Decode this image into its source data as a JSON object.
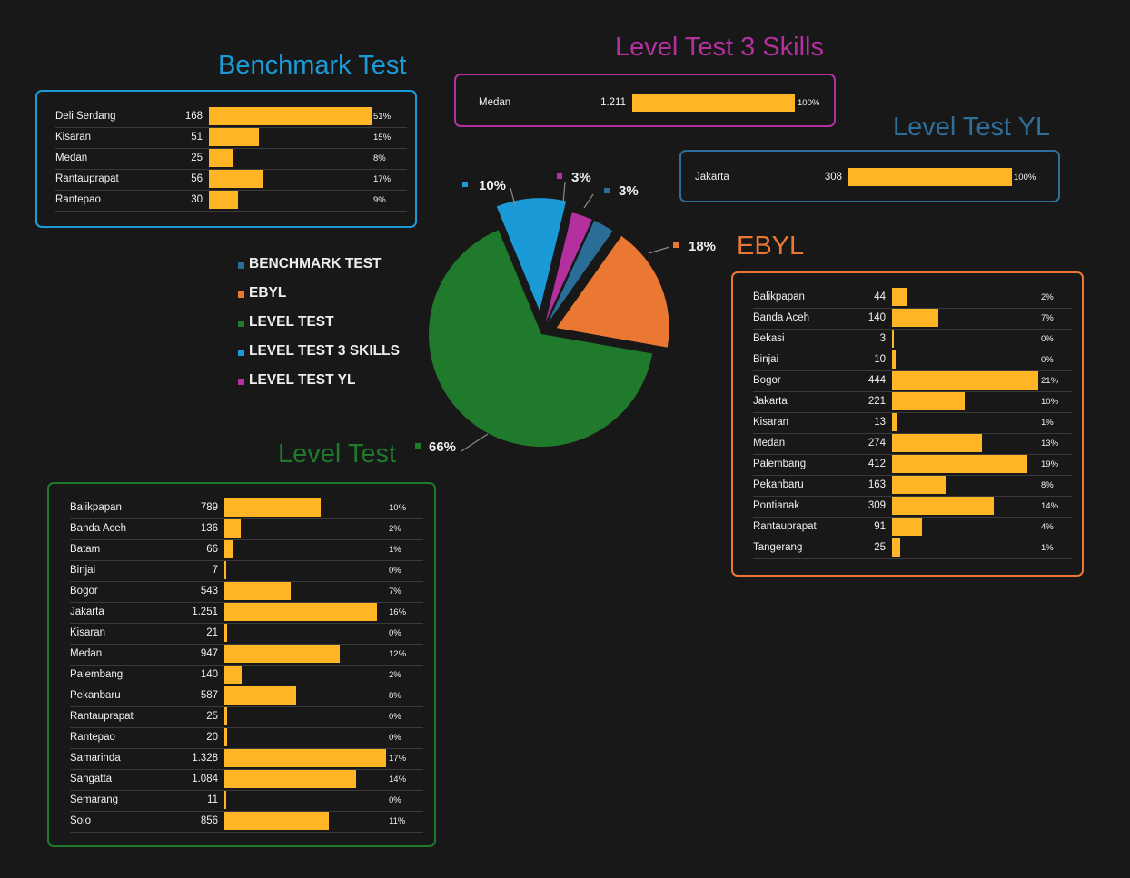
{
  "colors": {
    "benchmark": "#1a9bd8",
    "ebyl": "#ea7832",
    "level_test": "#1e7a2a",
    "level3": "#b3309e",
    "yl": "#2d6f9a",
    "bar": "#ffb526"
  },
  "titles": {
    "benchmark": "Benchmark Test",
    "level3": "Level Test 3 Skills",
    "yl": "Level Test YL",
    "ebyl": "EBYL",
    "level_test": "Level Test"
  },
  "legend": [
    {
      "label": "BENCHMARK TEST",
      "color": "#2a6e98"
    },
    {
      "label": "EBYL",
      "color": "#ea7832"
    },
    {
      "label": "LEVEL TEST",
      "color": "#1f7a2c"
    },
    {
      "label": "LEVEL TEST 3 SKILLS",
      "color": "#1a9bd8"
    },
    {
      "label": "LEVEL TEST YL",
      "color": "#b3309e"
    }
  ],
  "chart_data": [
    {
      "type": "pie",
      "slices": [
        {
          "legend": "LEVEL TEST 3 SKILLS",
          "label": "10%",
          "value": 10,
          "color": "#1a9bd8"
        },
        {
          "legend": "LEVEL TEST YL",
          "label": "3%",
          "value": 3,
          "color": "#b3309e"
        },
        {
          "legend": "BENCHMARK TEST",
          "label": "3%",
          "value": 3,
          "color": "#2a6e98"
        },
        {
          "legend": "EBYL",
          "label": "18%",
          "value": 18,
          "color": "#ea7832"
        },
        {
          "legend": "LEVEL TEST",
          "label": "66%",
          "value": 66,
          "color": "#1f7a2c"
        }
      ]
    },
    {
      "type": "bar",
      "panel": "Benchmark Test",
      "categories": [
        "Deli Serdang",
        "Kisaran",
        "Medan",
        "Rantauprapat",
        "Rantepao"
      ],
      "values": [
        168,
        51,
        25,
        56,
        30
      ],
      "value_labels": [
        "168",
        "51",
        "25",
        "56",
        "30"
      ],
      "percent_labels": [
        "51%",
        "15%",
        "8%",
        "17%",
        "9%"
      ]
    },
    {
      "type": "bar",
      "panel": "Level Test 3 Skills",
      "categories": [
        "Medan"
      ],
      "values": [
        1211
      ],
      "value_labels": [
        "1.211"
      ],
      "percent_labels": [
        "100%"
      ]
    },
    {
      "type": "bar",
      "panel": "Level Test YL",
      "categories": [
        "Jakarta"
      ],
      "values": [
        308
      ],
      "value_labels": [
        "308"
      ],
      "percent_labels": [
        "100%"
      ]
    },
    {
      "type": "bar",
      "panel": "EBYL",
      "categories": [
        "Balikpapan",
        "Banda Aceh",
        "Bekasi",
        "Binjai",
        "Bogor",
        "Jakarta",
        "Kisaran",
        "Medan",
        "Palembang",
        "Pekanbaru",
        "Pontianak",
        "Rantauprapat",
        "Tangerang"
      ],
      "values": [
        44,
        140,
        3,
        10,
        444,
        221,
        13,
        274,
        412,
        163,
        309,
        91,
        25
      ],
      "value_labels": [
        "44",
        "140",
        "3",
        "10",
        "444",
        "221",
        "13",
        "274",
        "412",
        "163",
        "309",
        "91",
        "25"
      ],
      "percent_labels": [
        "2%",
        "7%",
        "0%",
        "0%",
        "21%",
        "10%",
        "1%",
        "13%",
        "19%",
        "8%",
        "14%",
        "4%",
        "1%"
      ]
    },
    {
      "type": "bar",
      "panel": "Level Test",
      "categories": [
        "Balikpapan",
        "Banda Aceh",
        "Batam",
        "Binjai",
        "Bogor",
        "Jakarta",
        "Kisaran",
        "Medan",
        "Palembang",
        "Pekanbaru",
        "Rantauprapat",
        "Rantepao",
        "Samarinda",
        "Sangatta",
        "Semarang",
        "Solo"
      ],
      "values": [
        789,
        136,
        66,
        7,
        543,
        1251,
        21,
        947,
        140,
        587,
        25,
        20,
        1328,
        1084,
        11,
        856
      ],
      "value_labels": [
        "789",
        "136",
        "66",
        "7",
        "543",
        "1.251",
        "21",
        "947",
        "140",
        "587",
        "25",
        "20",
        "1.328",
        "1.084",
        "11",
        "856"
      ],
      "percent_labels": [
        "10%",
        "2%",
        "1%",
        "0%",
        "7%",
        "16%",
        "0%",
        "12%",
        "2%",
        "8%",
        "0%",
        "0%",
        "17%",
        "14%",
        "0%",
        "11%"
      ]
    }
  ]
}
